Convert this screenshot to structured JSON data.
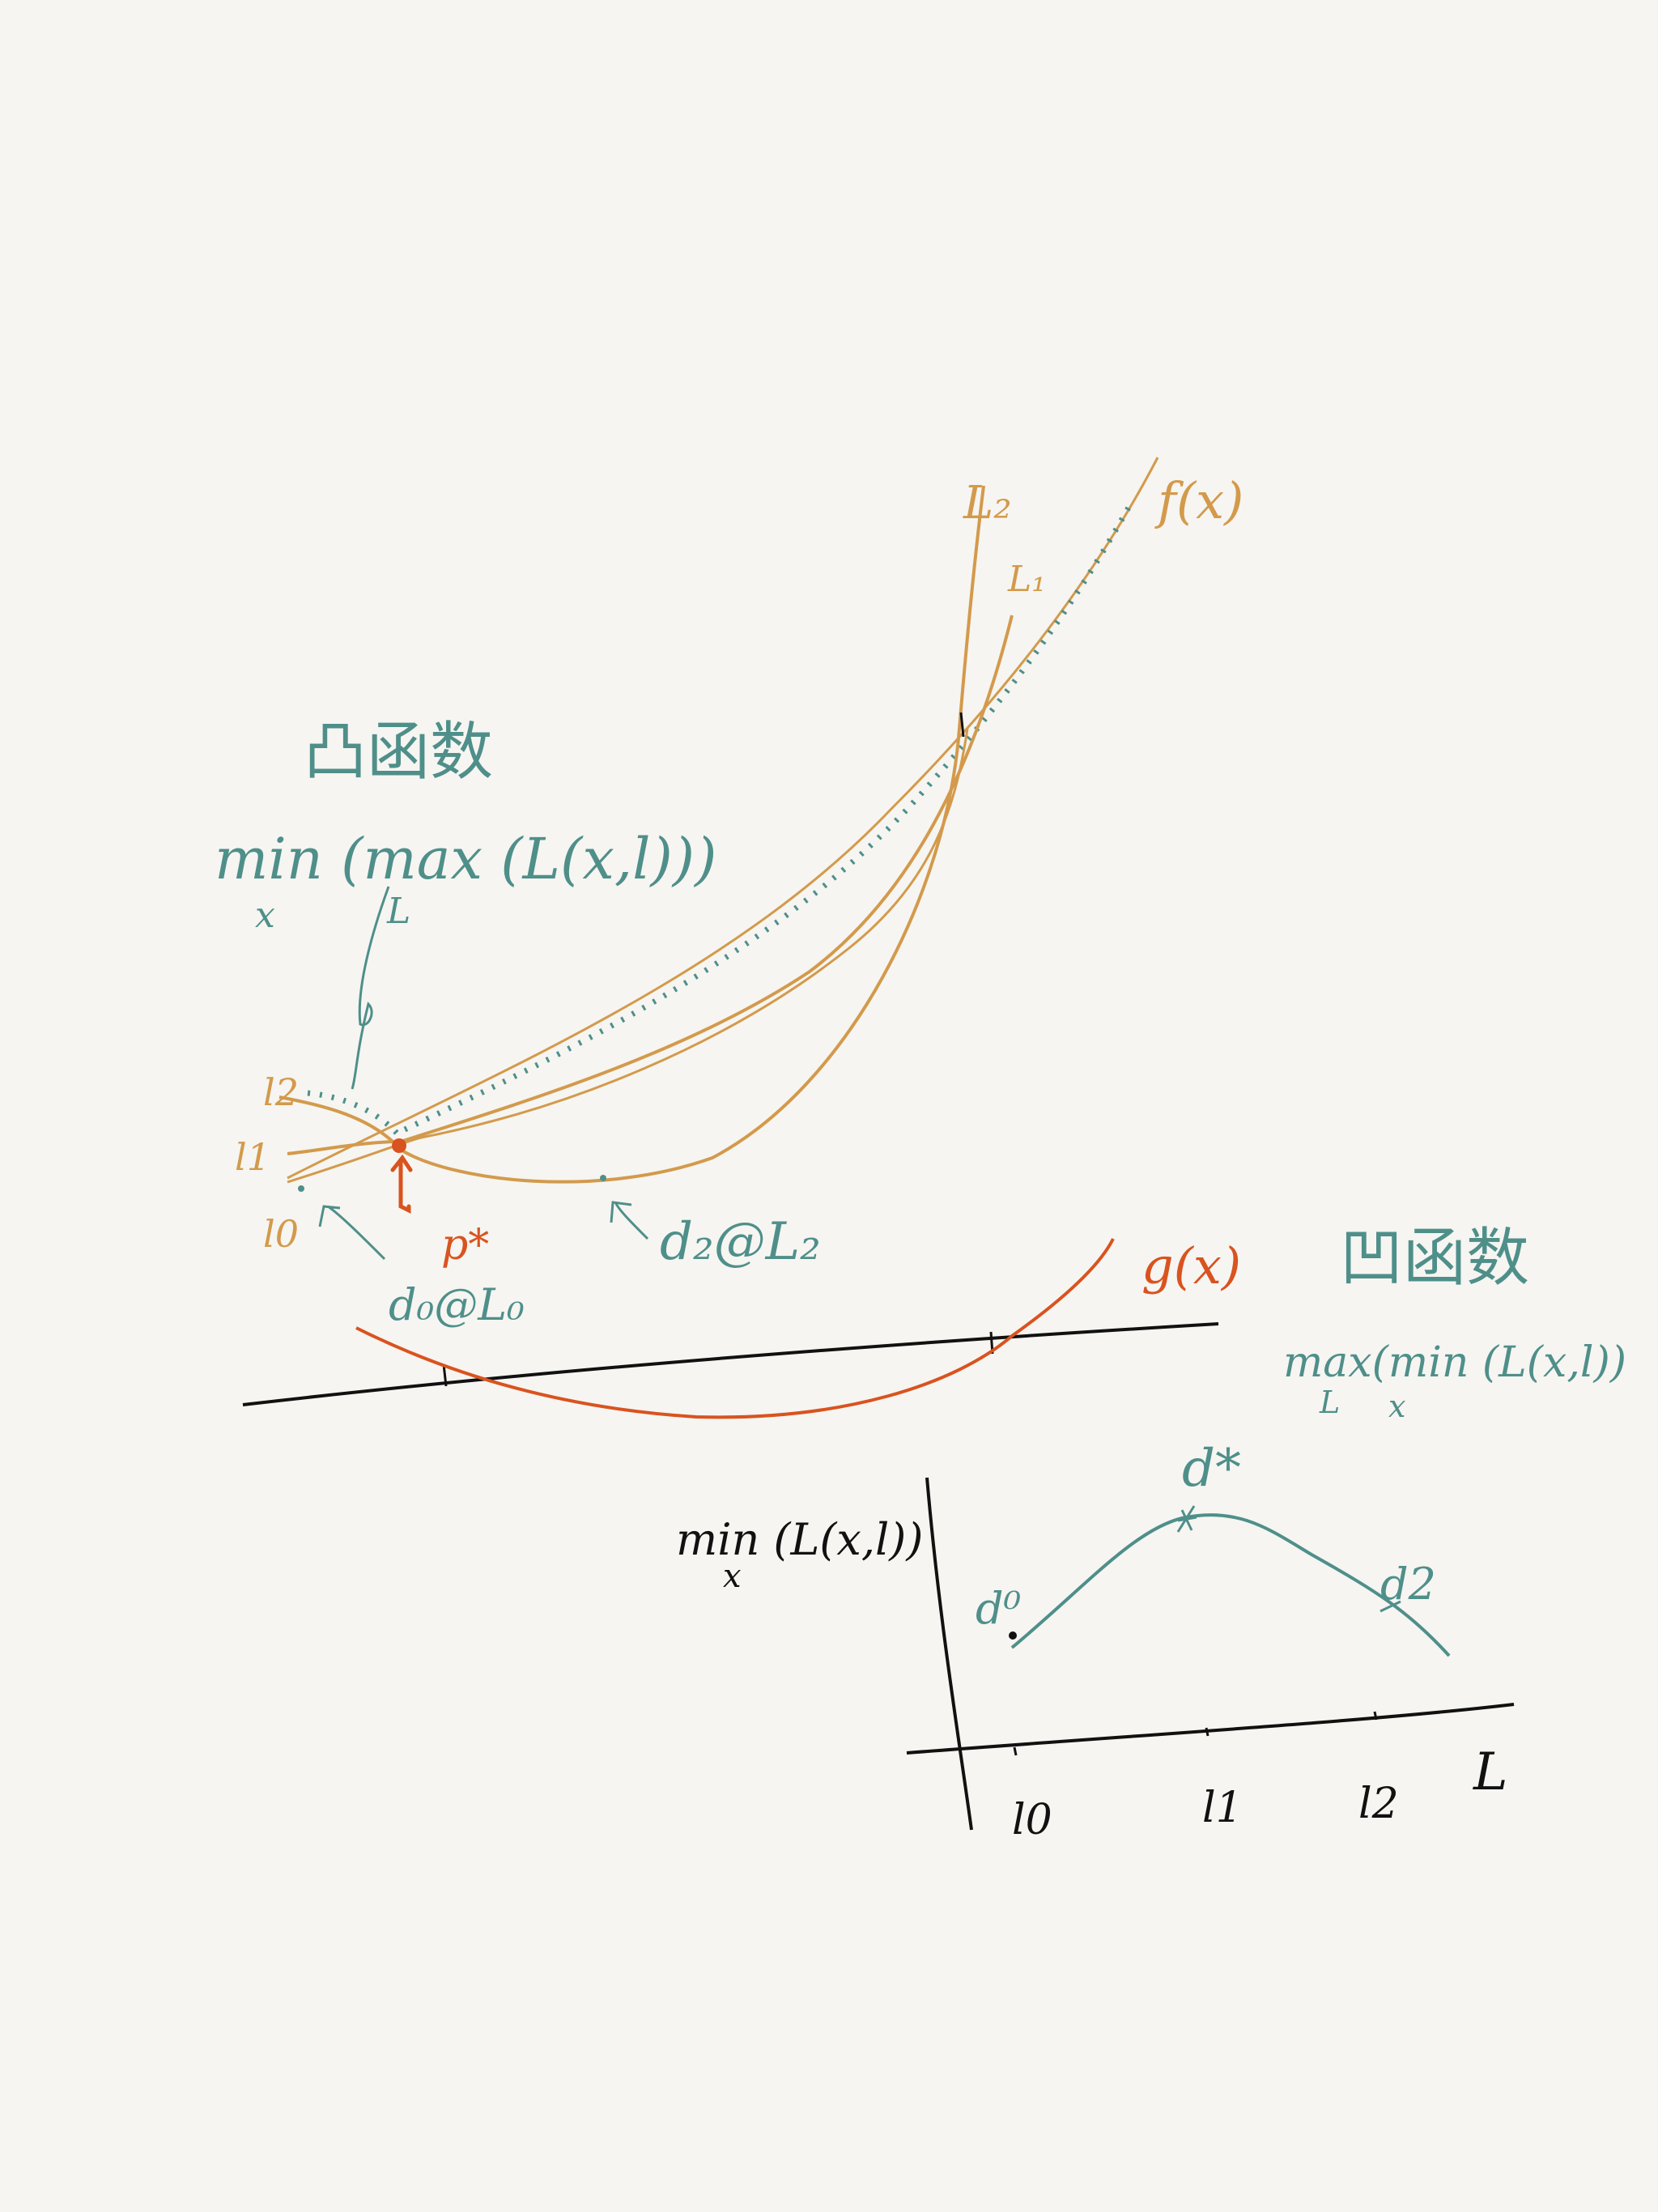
{
  "colors": {
    "background": "#f6f5f1",
    "orange": "#d39a4c",
    "teal": "#4f8f8a",
    "red": "#d9531f",
    "black": "#111111"
  },
  "labels": {
    "f_curve": "f(x)",
    "g_curve": "g(x)",
    "L2_top": "L₂",
    "L1_top": "L₁",
    "l2_left": "l2",
    "l1_left": "l1",
    "l0_left": "l0",
    "p_star": "p*",
    "d0_at_l0": "d₀@L₀",
    "d2_at_l2": "d₂@L₂",
    "concave_top": "凸函数",
    "minmax_expr": "min (max (L(x,l)))",
    "minmax_min_sub": "x",
    "minmax_max_sub": "L",
    "concave_bottom": "凹函数",
    "maxmin_expr": "max(min (L(x,l))",
    "maxmin_max_sub": "L",
    "maxmin_min_sub": "x",
    "bottom_ylabel": "min (L(x,l))",
    "bottom_ylabel_sub": "x",
    "d_star": "d*",
    "d0": "d⁰",
    "d2": "d2",
    "xaxis_l0": "l0",
    "xaxis_l1": "l1",
    "xaxis_l2": "l2",
    "xaxis_L": "L"
  },
  "bottom_graph": {
    "x_ticks": [
      "l0",
      "l1",
      "l2"
    ],
    "points": [
      {
        "label": "d⁰",
        "at": "l0"
      },
      {
        "label": "d*",
        "at": "l1"
      },
      {
        "label": "d2",
        "at": "l2"
      }
    ]
  }
}
